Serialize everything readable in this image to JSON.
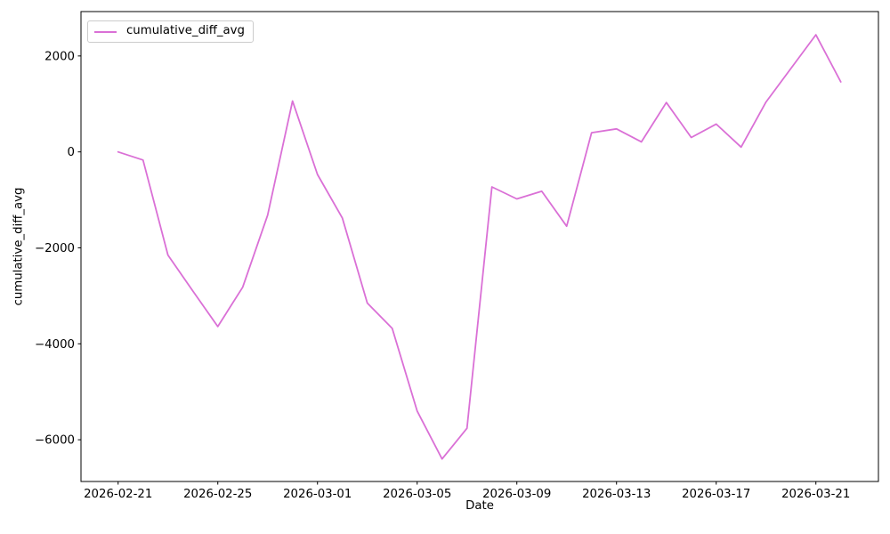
{
  "figure": {
    "background": "#ffffff",
    "spine_color": "#000000",
    "tick_color": "#000000"
  },
  "chart_data": {
    "type": "line",
    "title": "",
    "xlabel": "Date",
    "ylabel": "cumulative_diff_avg",
    "grid": false,
    "legend_position": "upper left",
    "x": [
      "2026-02-21",
      "2026-02-22",
      "2026-02-23",
      "2026-02-24",
      "2026-02-25",
      "2026-02-26",
      "2026-02-27",
      "2026-02-28",
      "2026-03-01",
      "2026-03-02",
      "2026-03-03",
      "2026-03-04",
      "2026-03-05",
      "2026-03-06",
      "2026-03-07",
      "2026-03-08",
      "2026-03-09",
      "2026-03-10",
      "2026-03-11",
      "2026-03-12",
      "2026-03-13",
      "2026-03-14",
      "2026-03-15",
      "2026-03-16",
      "2026-03-17",
      "2026-03-18",
      "2026-03-19",
      "2026-03-20",
      "2026-03-21",
      "2026-03-22"
    ],
    "series": [
      {
        "name": "cumulative_diff_avg",
        "color": "#DA70D6",
        "values": [
          0,
          -170,
          -2150,
          -2900,
          -3640,
          -2820,
          -1320,
          1060,
          -470,
          -1380,
          -3150,
          -3680,
          -5400,
          -6400,
          -5760,
          -730,
          -980,
          -820,
          -1550,
          400,
          480,
          210,
          1030,
          300,
          580,
          100,
          1040,
          1740,
          2440,
          1460
        ]
      }
    ],
    "x_ticks": [
      {
        "index": 0,
        "label": "2026-02-21"
      },
      {
        "index": 4,
        "label": "2026-02-25"
      },
      {
        "index": 8,
        "label": "2026-03-01"
      },
      {
        "index": 12,
        "label": "2026-03-05"
      },
      {
        "index": 16,
        "label": "2026-03-09"
      },
      {
        "index": 20,
        "label": "2026-03-13"
      },
      {
        "index": 24,
        "label": "2026-03-17"
      },
      {
        "index": 28,
        "label": "2026-03-21"
      }
    ],
    "y_ticks": [
      2000,
      0,
      -2000,
      -4000,
      -6000
    ],
    "ylim": [
      -6870,
      2925
    ],
    "xlim_index": [
      -1.49,
      30.51
    ]
  }
}
